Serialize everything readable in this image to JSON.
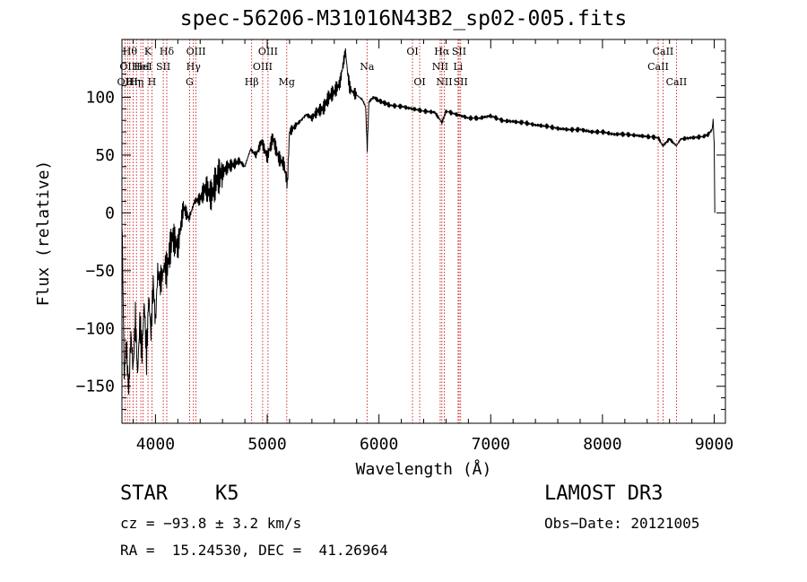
{
  "chart_data": {
    "type": "line",
    "title": "spec-56206-M31016N43B2_sp02-005.fits",
    "xlabel": "Wavelength (Å)",
    "ylabel": "Flux (relative)",
    "xlim": [
      3700,
      9100
    ],
    "ylim": [
      -182,
      150
    ],
    "xticks": [
      4000,
      5000,
      6000,
      7000,
      8000,
      9000
    ],
    "xtick_labels": [
      "4000",
      "5000",
      "6000",
      "7000",
      "8000",
      "9000"
    ],
    "yticks": [
      -150,
      -100,
      -50,
      0,
      50,
      100
    ],
    "ytick_labels": [
      "−150",
      "−100",
      "−50",
      "0",
      "50",
      "100"
    ],
    "series": [
      {
        "name": "spectrum",
        "color": "#000000",
        "x": [
          3700,
          3720,
          3740,
          3760,
          3780,
          3800,
          3820,
          3840,
          3860,
          3880,
          3900,
          3920,
          3940,
          3960,
          3980,
          4000,
          4020,
          4040,
          4060,
          4080,
          4100,
          4150,
          4200,
          4250,
          4300,
          4350,
          4400,
          4450,
          4500,
          4550,
          4600,
          4650,
          4700,
          4750,
          4800,
          4850,
          4900,
          4950,
          5000,
          5050,
          5100,
          5150,
          5180,
          5200,
          5250,
          5300,
          5350,
          5400,
          5450,
          5500,
          5550,
          5600,
          5650,
          5700,
          5720,
          5740,
          5760,
          5800,
          5850,
          5880,
          5895,
          5910,
          5950,
          6000,
          6050,
          6100,
          6200,
          6300,
          6400,
          6500,
          6563,
          6600,
          6700,
          6800,
          6900,
          7000,
          7100,
          7200,
          7300,
          7400,
          7500,
          7600,
          7700,
          7800,
          7900,
          8000,
          8100,
          8200,
          8300,
          8400,
          8500,
          8540,
          8600,
          8662,
          8700,
          8800,
          8900,
          8950,
          8980,
          8990,
          9000,
          9005
        ],
        "y": [
          0,
          -140,
          -115,
          -155,
          -105,
          -135,
          -90,
          -140,
          -95,
          -120,
          -78,
          -125,
          -72,
          -105,
          -60,
          -95,
          -50,
          -60,
          -55,
          -45,
          -50,
          -20,
          -30,
          5,
          -5,
          10,
          12,
          22,
          15,
          30,
          35,
          40,
          42,
          45,
          40,
          55,
          50,
          62,
          48,
          65,
          48,
          42,
          25,
          70,
          75,
          80,
          85,
          82,
          88,
          90,
          100,
          105,
          112,
          140,
          120,
          108,
          105,
          102,
          98,
          92,
          55,
          96,
          100,
          97,
          95,
          93,
          92,
          90,
          88,
          87,
          78,
          88,
          85,
          82,
          82,
          84,
          80,
          79,
          78,
          76,
          75,
          73,
          72,
          72,
          70,
          70,
          68,
          68,
          67,
          66,
          65,
          58,
          64,
          58,
          64,
          65,
          66,
          68,
          72,
          80,
          60,
          0
        ]
      }
    ],
    "emission_lines": [
      {
        "wave": 3727,
        "label": "OII",
        "row": 2
      },
      {
        "wave": 3750,
        "label": "OII",
        "row": 1
      },
      {
        "wave": 3771,
        "label": "Hθ",
        "row": 0
      },
      {
        "wave": 3800,
        "label": "Hη",
        "row": 2
      },
      {
        "wave": 3830,
        "label": "Hη",
        "row": 2
      },
      {
        "wave": 3869,
        "label": "HeI",
        "row": 1
      },
      {
        "wave": 3889,
        "label": "HeI",
        "row": 1
      },
      {
        "wave": 3933,
        "label": "K",
        "row": 0
      },
      {
        "wave": 3968,
        "label": "H",
        "row": 2
      },
      {
        "wave": 4070,
        "label": "SII",
        "row": 1
      },
      {
        "wave": 4101,
        "label": "Hδ",
        "row": 0
      },
      {
        "wave": 4305,
        "label": "G",
        "row": 2
      },
      {
        "wave": 4340,
        "label": "Hγ",
        "row": 1
      },
      {
        "wave": 4363,
        "label": "OIII",
        "row": 0
      },
      {
        "wave": 4861,
        "label": "Hβ",
        "row": 2
      },
      {
        "wave": 4959,
        "label": "OIII",
        "row": 1
      },
      {
        "wave": 5007,
        "label": "OIII",
        "row": 0
      },
      {
        "wave": 5175,
        "label": "Mg",
        "row": 2
      },
      {
        "wave": 5893,
        "label": "Na",
        "row": 1
      },
      {
        "wave": 6300,
        "label": "OI",
        "row": 0
      },
      {
        "wave": 6364,
        "label": "OI",
        "row": 2
      },
      {
        "wave": 6548,
        "label": "NII",
        "row": 1
      },
      {
        "wave": 6563,
        "label": "Hα",
        "row": 0
      },
      {
        "wave": 6584,
        "label": "NII",
        "row": 2
      },
      {
        "wave": 6708,
        "label": "Li",
        "row": 1
      },
      {
        "wave": 6717,
        "label": "SII",
        "row": 0
      },
      {
        "wave": 6731,
        "label": "SII",
        "row": 2
      },
      {
        "wave": 8498,
        "label": "CaII",
        "row": 1
      },
      {
        "wave": 8542,
        "label": "CaII",
        "row": 0
      },
      {
        "wave": 8662,
        "label": "CaII",
        "row": 2
      }
    ]
  },
  "info": {
    "class": "STAR",
    "subclass": "K5",
    "survey": "LAMOST DR3",
    "velocity": "cz = −93.8 ± 3.2 km/s",
    "obs_date": "Obs−Date: 20121005",
    "coords": "RA =  15.24530, DEC =  41.26964"
  },
  "colors": {
    "line_marker": "#c00000",
    "spectrum": "#000000",
    "axes": "#000000"
  }
}
